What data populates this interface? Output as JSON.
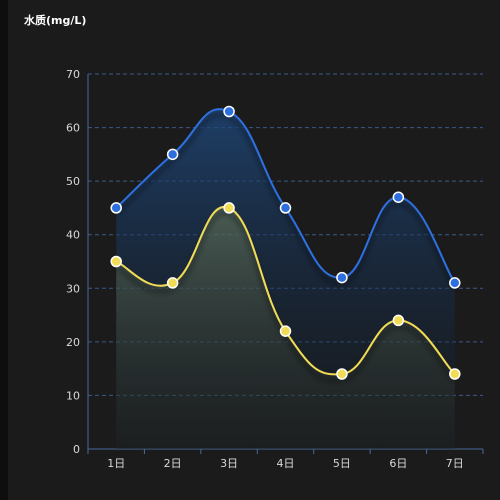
{
  "title": "水质(mg/L)",
  "chart_data": {
    "type": "line",
    "categories": [
      "1日",
      "2日",
      "3日",
      "4日",
      "5日",
      "6日",
      "7日"
    ],
    "series": [
      {
        "values": [
          45,
          55,
          63,
          45,
          32,
          47,
          31
        ],
        "color": "#2e6fe0",
        "fill": "#1d3a66"
      },
      {
        "values": [
          35,
          31,
          45,
          22,
          14,
          24,
          14
        ],
        "color": "#f2dc55",
        "fill": "#4a5a44"
      }
    ],
    "ylim": [
      0,
      70
    ],
    "yticks": [
      0,
      10,
      20,
      30,
      40,
      50,
      60,
      70
    ],
    "grid": true,
    "smooth": true,
    "legend": "none"
  }
}
